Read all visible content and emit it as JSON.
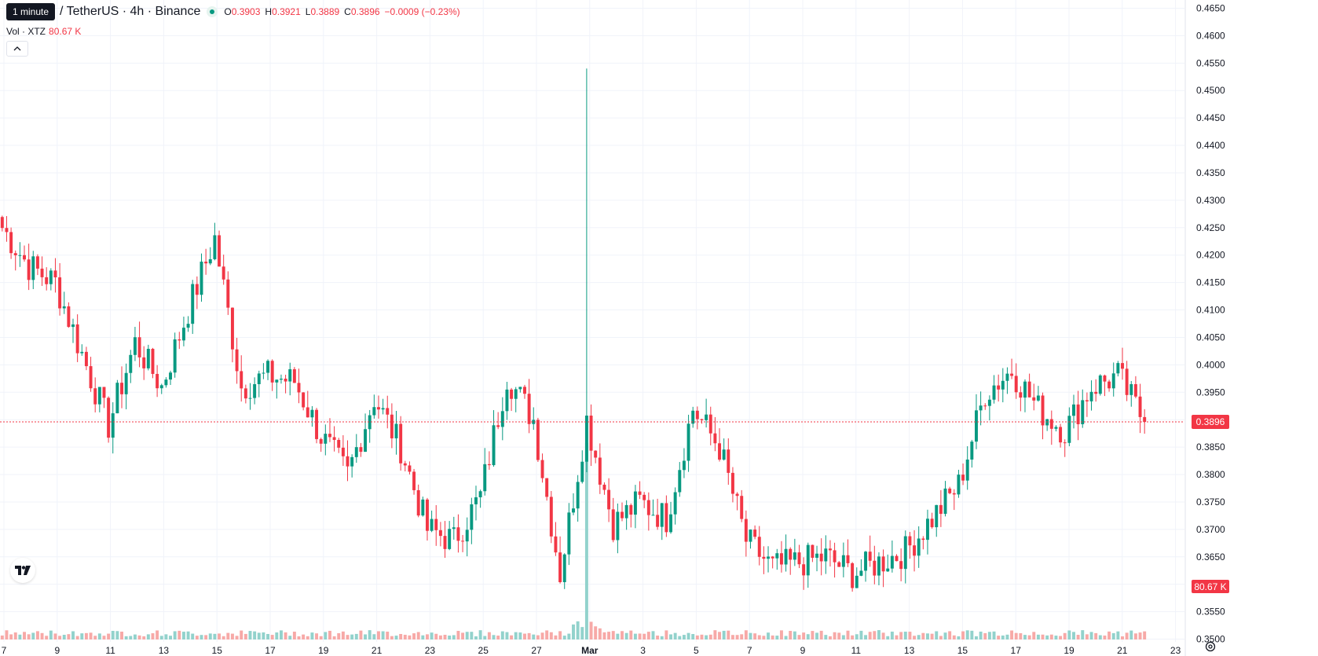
{
  "header": {
    "tooltip": "1 minute",
    "symbol": "/ TetherUS · 4h · Binance",
    "ohlc": {
      "o_label": "O",
      "o": "0.3903",
      "h_label": "H",
      "h": "0.3921",
      "l_label": "L",
      "l": "0.3889",
      "c_label": "C",
      "c": "0.3896"
    },
    "change": "−0.0009 (−0.23%)",
    "volume_label": "Vol · XTZ",
    "volume_value": "80.67 K"
  },
  "icons": {
    "collapse": "chevron-up-icon",
    "logo": "tradingview-logo-icon",
    "settings": "gear-icon"
  },
  "colors": {
    "up": "#089981",
    "down": "#f23645",
    "up_volume": "#92d2cc",
    "down_volume": "#f7a9a7",
    "grid": "#f0f3fa",
    "price_line": "#f23645"
  },
  "chart_data": {
    "type": "candlestick",
    "interval": "4h",
    "y_axis": {
      "ticks": [
        "0.4650",
        "0.4600",
        "0.4550",
        "0.4500",
        "0.4450",
        "0.4400",
        "0.4350",
        "0.4300",
        "0.4250",
        "0.4200",
        "0.4150",
        "0.4100",
        "0.4050",
        "0.4000",
        "0.3950",
        "0.3900",
        "0.3850",
        "0.3800",
        "0.3750",
        "0.3700",
        "0.3650",
        "0.3600",
        "0.3550",
        "0.3500"
      ],
      "range": [
        0.3495,
        0.4655
      ]
    },
    "x_axis": {
      "ticks": [
        "7",
        "9",
        "11",
        "13",
        "15",
        "17",
        "19",
        "21",
        "23",
        "25",
        "27",
        "Mar",
        "3",
        "5",
        "7",
        "9",
        "11",
        "13",
        "15",
        "17",
        "19",
        "21",
        "23"
      ]
    },
    "last_price": "0.3896",
    "last_volume": "80.67 K",
    "daily_close_path": [
      {
        "label": "7",
        "close": 0.425
      },
      {
        "label": "8",
        "close": 0.418
      },
      {
        "label": "9",
        "close": 0.415
      },
      {
        "label": "10",
        "close": 0.402
      },
      {
        "label": "11",
        "close": 0.389
      },
      {
        "label": "12",
        "close": 0.404
      },
      {
        "label": "13",
        "close": 0.396
      },
      {
        "label": "14",
        "close": 0.41
      },
      {
        "label": "15",
        "close": 0.423
      },
      {
        "label": "16",
        "close": 0.396
      },
      {
        "label": "17",
        "close": 0.398
      },
      {
        "label": "18",
        "close": 0.397
      },
      {
        "label": "19",
        "close": 0.387
      },
      {
        "label": "20",
        "close": 0.38
      },
      {
        "label": "21",
        "close": 0.394
      },
      {
        "label": "22",
        "close": 0.385
      },
      {
        "label": "23",
        "close": 0.37
      },
      {
        "label": "24",
        "close": 0.368
      },
      {
        "label": "25",
        "close": 0.376
      },
      {
        "label": "26",
        "close": 0.398
      },
      {
        "label": "27",
        "close": 0.39
      },
      {
        "label": "28",
        "close": 0.362
      },
      {
        "label": "Mar",
        "close": 0.39
      },
      {
        "label": "2",
        "close": 0.371
      },
      {
        "label": "3",
        "close": 0.375
      },
      {
        "label": "4",
        "close": 0.372
      },
      {
        "label": "5",
        "close": 0.392
      },
      {
        "label": "6",
        "close": 0.385
      },
      {
        "label": "7",
        "close": 0.368
      },
      {
        "label": "8",
        "close": 0.363
      },
      {
        "label": "9",
        "close": 0.364
      },
      {
        "label": "10",
        "close": 0.365
      },
      {
        "label": "11",
        "close": 0.362
      },
      {
        "label": "12",
        "close": 0.364
      },
      {
        "label": "13",
        "close": 0.366
      },
      {
        "label": "14",
        "close": 0.372
      },
      {
        "label": "15",
        "close": 0.378
      },
      {
        "label": "16",
        "close": 0.395
      },
      {
        "label": "17",
        "close": 0.399
      },
      {
        "label": "18",
        "close": 0.392
      },
      {
        "label": "19",
        "close": 0.388
      },
      {
        "label": "20",
        "close": 0.396
      },
      {
        "label": "21",
        "close": 0.398
      },
      {
        "label": "22",
        "close": 0.3896
      }
    ],
    "volume_spike": {
      "label": "Mar",
      "high": 0.454
    }
  }
}
